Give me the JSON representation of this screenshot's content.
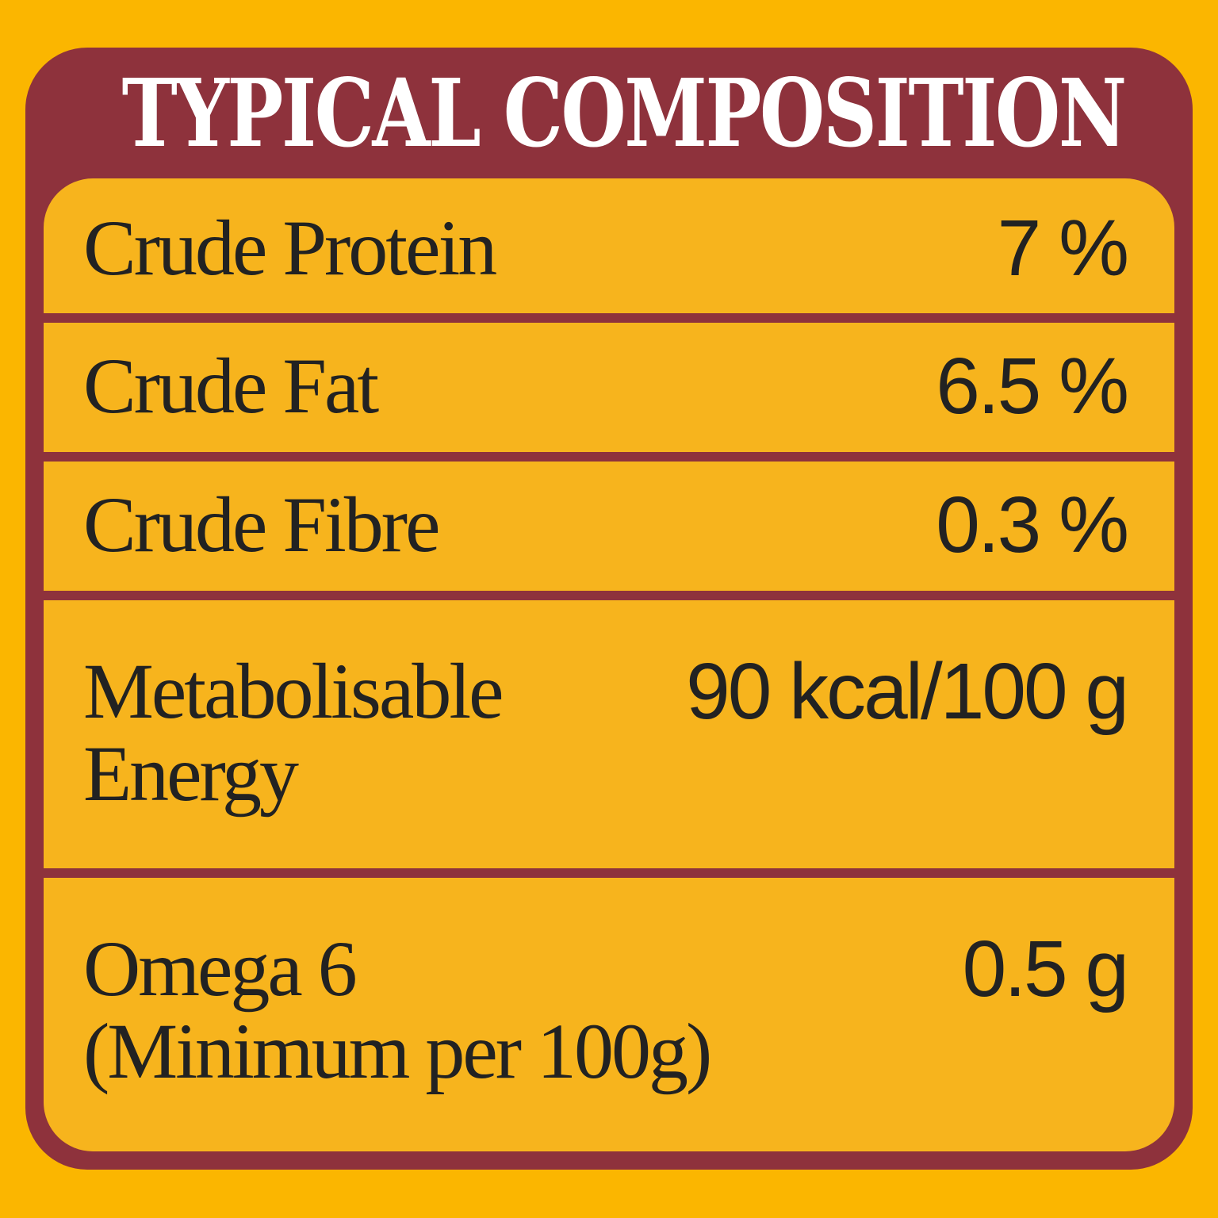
{
  "title": "TYPICAL COMPOSITION",
  "rows": [
    {
      "label": "Crude Protein",
      "value": "7 %"
    },
    {
      "label": "Crude Fat",
      "value": "6.5 %"
    },
    {
      "label": "Crude Fibre",
      "value": "0.3 %"
    },
    {
      "label": "Metabolisable",
      "label2": "Energy",
      "value": "90 kcal/100 g"
    },
    {
      "label": "Omega 6",
      "label2": "(Minimum per 100g)",
      "value": "0.5 g"
    }
  ],
  "colors": {
    "background": "#FBB600",
    "frame": "#8E323C",
    "row": "#F7B41D",
    "text": "#222222",
    "title": "#FFFFFF"
  }
}
